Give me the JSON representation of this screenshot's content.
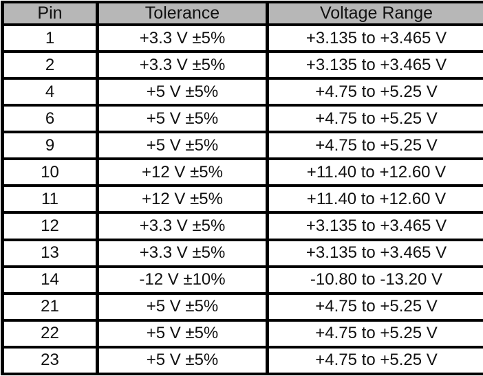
{
  "table": {
    "columns": {
      "pin": "Pin",
      "tolerance": "Tolerance",
      "voltage_range": "Voltage Range"
    },
    "rows": [
      [
        "1",
        "+3.3 V ±5%",
        "+3.135 to +3.465 V"
      ],
      [
        "2",
        "+3.3 V ±5%",
        "+3.135 to +3.465 V"
      ],
      [
        "4",
        "+5 V ±5%",
        "+4.75 to +5.25 V"
      ],
      [
        "6",
        "+5 V ±5%",
        "+4.75 to +5.25 V"
      ],
      [
        "9",
        "+5 V ±5%",
        "+4.75 to +5.25 V"
      ],
      [
        "10",
        "+12 V ±5%",
        "+11.40 to +12.60 V"
      ],
      [
        "11",
        "+12 V ±5%",
        "+11.40 to +12.60 V"
      ],
      [
        "12",
        "+3.3 V ±5%",
        "+3.135 to +3.465 V"
      ],
      [
        "13",
        "+3.3 V ±5%",
        "+3.135 to +3.465 V"
      ],
      [
        "14",
        "-12 V ±10%",
        "-10.80 to -13.20 V"
      ],
      [
        "21",
        "+5 V ±5%",
        "+4.75 to +5.25 V"
      ],
      [
        "22",
        "+5 V ±5%",
        "+4.75 to +5.25 V"
      ],
      [
        "23",
        "+5 V ±5%",
        "+4.75 to +5.25 V"
      ]
    ],
    "colors": {
      "header_bg": "#b7b7b7",
      "cell_bg": "#ffffff",
      "border": "#000000",
      "text": "#111111"
    }
  }
}
